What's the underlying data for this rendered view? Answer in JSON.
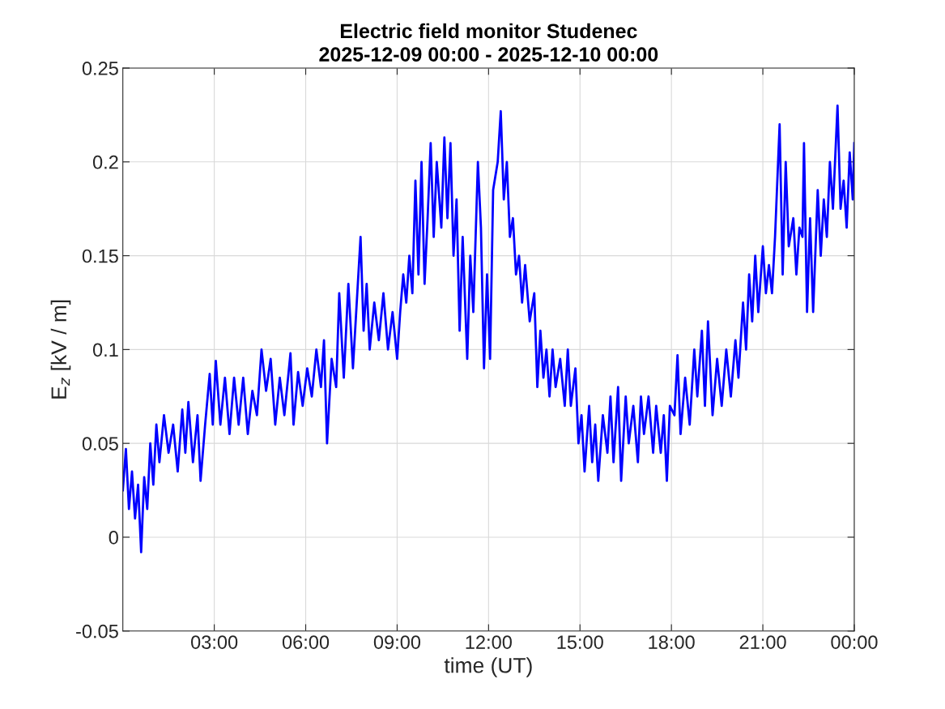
{
  "chart_data": {
    "type": "line",
    "title": "Electric field monitor Studenec\n2025-12-09 00:00 - 2025-12-10 00:00",
    "xlabel": "time (UT)",
    "ylabel": "E$_{z}$ [kV / m]",
    "xlim": [
      0,
      24
    ],
    "xticks": [
      {
        "value": 3,
        "label": "03:00"
      },
      {
        "value": 6,
        "label": "06:00"
      },
      {
        "value": 9,
        "label": "09:00"
      },
      {
        "value": 12,
        "label": "12:00"
      },
      {
        "value": 15,
        "label": "15:00"
      },
      {
        "value": 18,
        "label": "18:00"
      },
      {
        "value": 21,
        "label": "21:00"
      },
      {
        "value": 24,
        "label": "00:00"
      }
    ],
    "ylim": [
      -0.05,
      0.25
    ],
    "yticks": [
      {
        "value": -0.05,
        "label": "-0.05"
      },
      0,
      0.05,
      0.1,
      0.15,
      0.2,
      0.25
    ],
    "grid": true,
    "line_style": "solid",
    "marker": "none",
    "series": [
      {
        "color": "#0000ff",
        "x": [
          0.0,
          0.1,
          0.2,
          0.3,
          0.4,
          0.5,
          0.6,
          0.7,
          0.8,
          0.9,
          1.0,
          1.1,
          1.2,
          1.35,
          1.5,
          1.65,
          1.8,
          1.95,
          2.05,
          2.15,
          2.3,
          2.45,
          2.55,
          2.7,
          2.85,
          2.95,
          3.05,
          3.2,
          3.35,
          3.5,
          3.65,
          3.8,
          3.95,
          4.1,
          4.25,
          4.4,
          4.55,
          4.7,
          4.85,
          5.0,
          5.15,
          5.3,
          5.5,
          5.6,
          5.75,
          5.9,
          6.05,
          6.2,
          6.35,
          6.5,
          6.6,
          6.7,
          6.85,
          7.0,
          7.1,
          7.25,
          7.4,
          7.55,
          7.65,
          7.8,
          7.9,
          8.0,
          8.1,
          8.25,
          8.4,
          8.55,
          8.7,
          8.85,
          9.0,
          9.1,
          9.2,
          9.3,
          9.4,
          9.5,
          9.6,
          9.7,
          9.8,
          9.9,
          10.0,
          10.1,
          10.2,
          10.3,
          10.45,
          10.55,
          10.65,
          10.75,
          10.85,
          10.95,
          11.05,
          11.15,
          11.3,
          11.4,
          11.5,
          11.65,
          11.75,
          11.85,
          11.95,
          12.05,
          12.15,
          12.3,
          12.4,
          12.5,
          12.6,
          12.7,
          12.8,
          12.9,
          13.0,
          13.1,
          13.2,
          13.35,
          13.5,
          13.6,
          13.7,
          13.8,
          13.9,
          14.0,
          14.1,
          14.2,
          14.35,
          14.5,
          14.6,
          14.7,
          14.85,
          14.95,
          15.05,
          15.15,
          15.3,
          15.4,
          15.5,
          15.6,
          15.75,
          15.9,
          16.0,
          16.1,
          16.25,
          16.35,
          16.5,
          16.6,
          16.75,
          16.9,
          17.0,
          17.1,
          17.25,
          17.4,
          17.5,
          17.65,
          17.75,
          17.85,
          17.95,
          18.1,
          18.2,
          18.3,
          18.45,
          18.6,
          18.75,
          18.85,
          19.0,
          19.1,
          19.2,
          19.35,
          19.5,
          19.65,
          19.8,
          19.95,
          20.1,
          20.2,
          20.35,
          20.45,
          20.55,
          20.65,
          20.75,
          20.85,
          21.0,
          21.1,
          21.2,
          21.3,
          21.4,
          21.5,
          21.55,
          21.65,
          21.75,
          21.85,
          22.0,
          22.1,
          22.2,
          22.3,
          22.35,
          22.45,
          22.55,
          22.65,
          22.8,
          22.9,
          23.0,
          23.1,
          23.2,
          23.3,
          23.45,
          23.55,
          23.65,
          23.75,
          23.85,
          23.95,
          24.0
        ],
        "values": [
          0.025,
          0.047,
          0.015,
          0.035,
          0.01,
          0.028,
          -0.008,
          0.032,
          0.015,
          0.05,
          0.028,
          0.06,
          0.04,
          0.065,
          0.045,
          0.06,
          0.035,
          0.068,
          0.045,
          0.072,
          0.04,
          0.065,
          0.03,
          0.06,
          0.087,
          0.06,
          0.094,
          0.06,
          0.085,
          0.055,
          0.085,
          0.06,
          0.085,
          0.055,
          0.078,
          0.065,
          0.1,
          0.078,
          0.095,
          0.06,
          0.085,
          0.065,
          0.098,
          0.06,
          0.088,
          0.07,
          0.09,
          0.075,
          0.1,
          0.08,
          0.105,
          0.05,
          0.095,
          0.08,
          0.13,
          0.085,
          0.135,
          0.09,
          0.118,
          0.16,
          0.11,
          0.135,
          0.1,
          0.125,
          0.105,
          0.13,
          0.1,
          0.12,
          0.095,
          0.12,
          0.14,
          0.125,
          0.15,
          0.13,
          0.19,
          0.14,
          0.2,
          0.135,
          0.17,
          0.21,
          0.16,
          0.2,
          0.165,
          0.213,
          0.17,
          0.21,
          0.15,
          0.18,
          0.11,
          0.16,
          0.095,
          0.15,
          0.12,
          0.2,
          0.165,
          0.09,
          0.14,
          0.095,
          0.185,
          0.2,
          0.227,
          0.18,
          0.2,
          0.16,
          0.17,
          0.14,
          0.15,
          0.125,
          0.145,
          0.115,
          0.13,
          0.08,
          0.11,
          0.085,
          0.1,
          0.075,
          0.1,
          0.08,
          0.095,
          0.07,
          0.1,
          0.07,
          0.09,
          0.05,
          0.065,
          0.035,
          0.07,
          0.04,
          0.06,
          0.03,
          0.065,
          0.045,
          0.075,
          0.04,
          0.08,
          0.03,
          0.075,
          0.05,
          0.07,
          0.04,
          0.075,
          0.055,
          0.075,
          0.045,
          0.07,
          0.045,
          0.065,
          0.03,
          0.07,
          0.065,
          0.097,
          0.055,
          0.085,
          0.06,
          0.1,
          0.075,
          0.11,
          0.07,
          0.115,
          0.065,
          0.095,
          0.07,
          0.1,
          0.075,
          0.105,
          0.085,
          0.125,
          0.1,
          0.14,
          0.115,
          0.15,
          0.12,
          0.155,
          0.13,
          0.145,
          0.13,
          0.16,
          0.2,
          0.22,
          0.14,
          0.2,
          0.155,
          0.17,
          0.14,
          0.165,
          0.16,
          0.21,
          0.12,
          0.17,
          0.12,
          0.185,
          0.15,
          0.18,
          0.16,
          0.2,
          0.175,
          0.23,
          0.175,
          0.19,
          0.165,
          0.205,
          0.18,
          0.21
        ]
      }
    ]
  }
}
